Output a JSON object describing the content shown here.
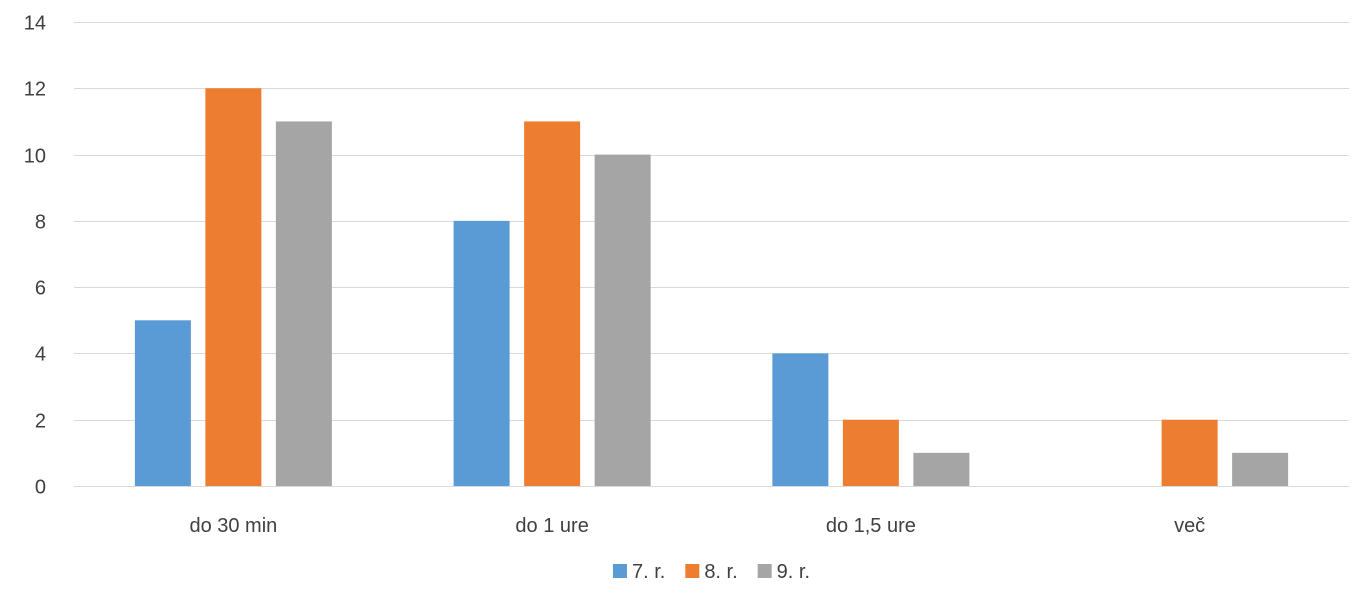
{
  "chart_data": {
    "type": "bar",
    "categories": [
      "do 30 min",
      "do 1 ure",
      "do 1,5 ure",
      "več"
    ],
    "series": [
      {
        "name": "7. r.",
        "color": "#5B9BD5",
        "values": [
          5,
          8,
          4,
          0
        ]
      },
      {
        "name": "8. r.",
        "color": "#ED7D31",
        "values": [
          12,
          11,
          2,
          2
        ]
      },
      {
        "name": "9. r.",
        "color": "#A5A5A5",
        "values": [
          11,
          10,
          1,
          1
        ]
      }
    ],
    "ylim": [
      0,
      14
    ],
    "yticks": [
      "0",
      "2",
      "4",
      "6",
      "8",
      "10",
      "12",
      "14"
    ],
    "grid": true,
    "legend_position": "bottom"
  }
}
